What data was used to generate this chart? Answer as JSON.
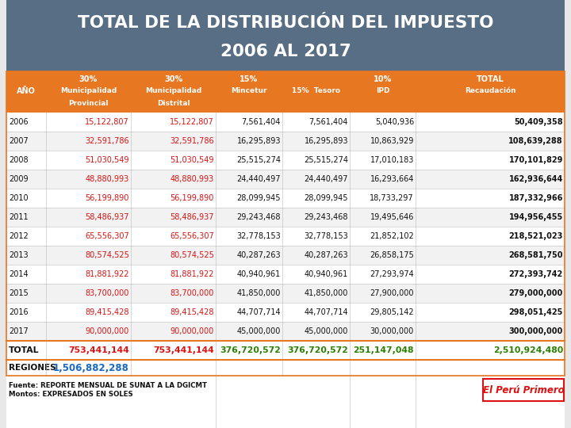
{
  "title_line1": "TOTAL DE LA DISTRIBUCIÓN DEL IMPUESTO",
  "title_line2": "2006 AL 2017",
  "title_bg": "#576e84",
  "title_color": "#ffffff",
  "header_bg": "#e87722",
  "header_color": "#ffffff",
  "years": [
    "2006",
    "2007",
    "2008",
    "2009",
    "2010",
    "2011",
    "2012",
    "2013",
    "2014",
    "2015",
    "2016",
    "2017"
  ],
  "col1": [
    "15,122,807",
    "32,591,786",
    "51,030,549",
    "48,880,993",
    "56,199,890",
    "58,486,937",
    "65,556,307",
    "80,574,525",
    "81,881,922",
    "83,700,000",
    "89,415,428",
    "90,000,000"
  ],
  "col2": [
    "15,122,807",
    "32,591,786",
    "51,030,549",
    "48,880,993",
    "56,199,890",
    "58,486,937",
    "65,556,307",
    "80,574,525",
    "81,881,922",
    "83,700,000",
    "89,415,428",
    "90,000,000"
  ],
  "col3": [
    "7,561,404",
    "16,295,893",
    "25,515,274",
    "24,440,497",
    "28,099,945",
    "29,243,468",
    "32,778,153",
    "40,287,263",
    "40,940,961",
    "41,850,000",
    "44,707,714",
    "45,000,000"
  ],
  "col4": [
    "7,561,404",
    "16,295,893",
    "25,515,274",
    "24,440,497",
    "28,099,945",
    "29,243,468",
    "32,778,153",
    "40,287,263",
    "40,940,961",
    "41,850,000",
    "44,707,714",
    "45,000,000"
  ],
  "col5": [
    "5,040,936",
    "10,863,929",
    "17,010,183",
    "16,293,664",
    "18,733,297",
    "19,495,646",
    "21,852,102",
    "26,858,175",
    "27,293,974",
    "27,900,000",
    "29,805,142",
    "30,000,000"
  ],
  "col6": [
    "50,409,358",
    "108,639,288",
    "170,101,829",
    "162,936,644",
    "187,332,966",
    "194,956,455",
    "218,521,023",
    "268,581,750",
    "272,393,742",
    "279,000,000",
    "298,051,425",
    "300,000,000"
  ],
  "total_col1": "753,441,144",
  "total_col2": "753,441,144",
  "total_col3": "376,720,572",
  "total_col4": "376,720,572",
  "total_col5": "251,147,048",
  "total_col6": "2,510,924,480",
  "regiones_value": "1,506,882,288",
  "footer_line1": "Fuente: REPORTE MENSUAL DE SUNAT A LA DGICMT",
  "footer_line2": "Montos: EXPRESADOS EN SOLES",
  "red_color": "#dd1111",
  "green_color": "#2a7f00",
  "blue_color": "#1a6abe",
  "black_color": "#111111",
  "orange_color": "#e87722",
  "bg_color": "#e8e8e8",
  "white": "#ffffff",
  "light_gray": "#f2f2f2"
}
